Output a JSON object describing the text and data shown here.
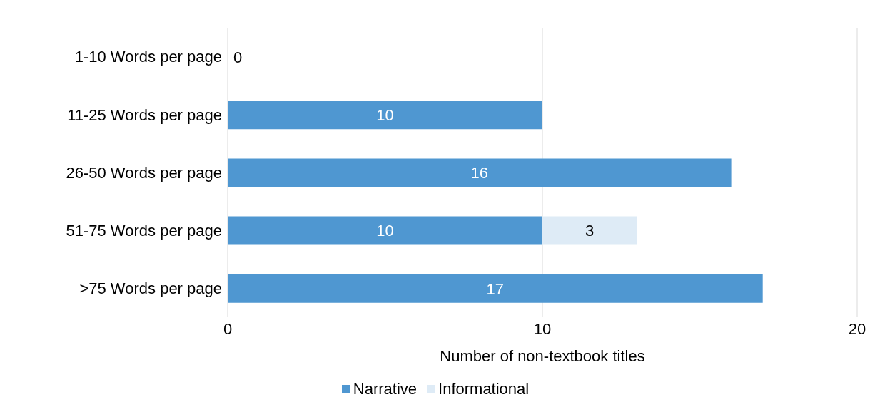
{
  "chart_data": {
    "type": "bar",
    "orientation": "horizontal",
    "stacked": true,
    "categories": [
      "1-10 Words per page",
      "11-25 Words per page",
      "26-50 Words per page",
      "51-75 Words per page",
      ">75 Words per page"
    ],
    "series": [
      {
        "name": "Narrative",
        "color": "#4f97d1",
        "values": [
          0,
          10,
          16,
          10,
          17
        ],
        "value_labels": [
          "0",
          "10",
          "16",
          "10",
          "17"
        ]
      },
      {
        "name": "Informational",
        "color": "#deebf6",
        "values": [
          null,
          null,
          null,
          3,
          null
        ],
        "value_labels": [
          null,
          null,
          null,
          "3",
          null
        ]
      }
    ],
    "xlabel": "Number of non-textbook titles",
    "xlim": [
      0,
      20
    ],
    "xticks": [
      0,
      10,
      20
    ],
    "grid": "x",
    "legend": "bottom"
  }
}
